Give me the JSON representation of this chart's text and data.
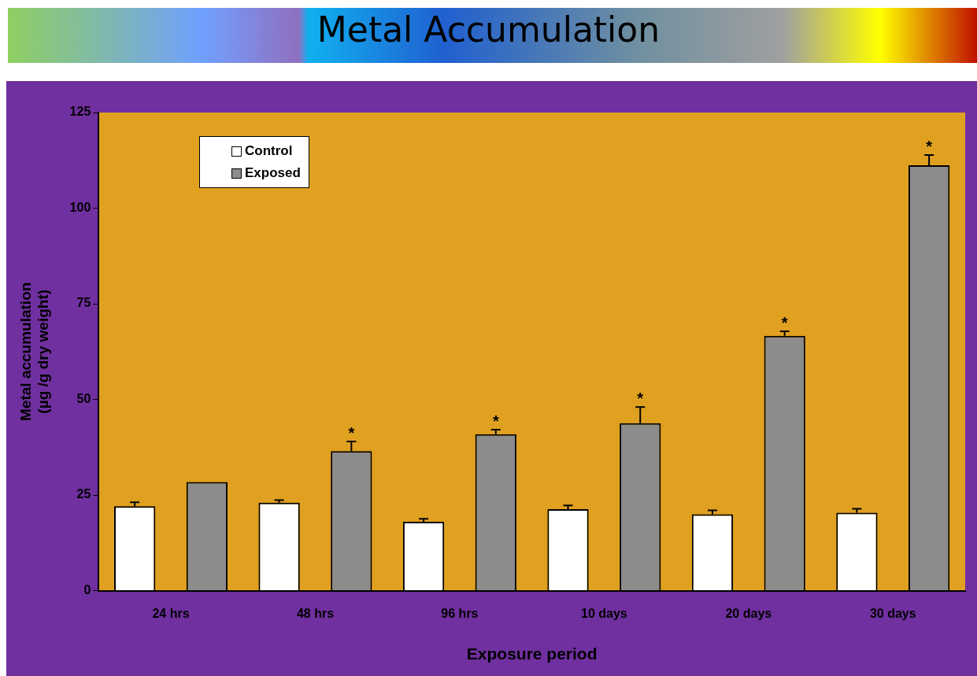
{
  "chart_data": {
    "type": "bar",
    "title": "Metal Accumulation",
    "xlabel": "Exposure period",
    "ylabel": "Metal accumulation\n(µg /g dry weight)",
    "categories": [
      "24 hrs",
      "48 hrs",
      "96 hrs",
      "10 days",
      "20 days",
      "30 days"
    ],
    "series": [
      {
        "name": "Control",
        "color": "#ffffff",
        "values": [
          22.1,
          23,
          18,
          21.3,
          20,
          20.4
        ],
        "errors": [
          [
            22.1,
            23.1
          ],
          [
            23,
            23.7
          ],
          [
            18,
            18.8
          ],
          [
            21.3,
            22.3
          ],
          [
            20,
            21
          ],
          [
            20.4,
            21.4
          ]
        ]
      },
      {
        "name": "Exposed",
        "color": "#8c8c8c",
        "values": [
          28.4,
          36.5,
          40.9,
          43.8,
          66.6,
          111.2
        ],
        "value_labels": [
          null,
          "*",
          "*",
          "*",
          "*",
          "*"
        ],
        "errors": [
          null,
          [
            36.5,
            39
          ],
          [
            40.9,
            42.1
          ],
          [
            43.8,
            48
          ],
          [
            66.6,
            67.8
          ],
          [
            111.2,
            113.9
          ]
        ]
      }
    ],
    "ylim": [
      0,
      125
    ],
    "yticks": [
      0,
      25,
      50,
      75,
      100,
      125
    ],
    "grid": false,
    "legend": "top left"
  }
}
